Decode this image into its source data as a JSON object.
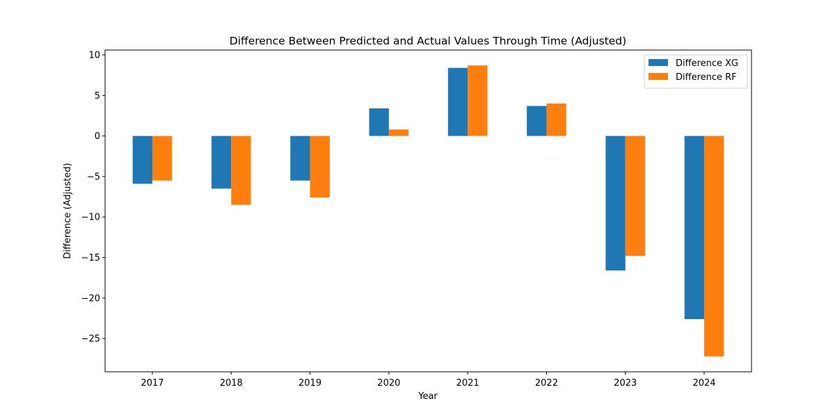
{
  "chart_data": {
    "type": "bar",
    "title": "Difference Between Predicted and Actual Values Through Time (Adjusted)",
    "xlabel": "Year",
    "ylabel": "Difference (Adjusted)",
    "categories": [
      "2017",
      "2018",
      "2019",
      "2020",
      "2021",
      "2022",
      "2023",
      "2024"
    ],
    "series": [
      {
        "name": "Difference XG",
        "color": "#1f77b4",
        "values": [
          -5.9,
          -6.5,
          -5.5,
          3.4,
          8.4,
          3.7,
          -16.6,
          -22.6
        ]
      },
      {
        "name": "Difference RF",
        "color": "#ff7f0e",
        "values": [
          -5.5,
          -8.5,
          -7.6,
          0.8,
          8.7,
          4.0,
          -14.8,
          -27.2
        ]
      }
    ],
    "ylim": [
      -29.1,
      10.6
    ],
    "yticks": [
      10,
      5,
      0,
      -5,
      -10,
      -15,
      -20,
      -25
    ],
    "ytick_labels": [
      "10",
      "5",
      "0",
      "−5",
      "−10",
      "−15",
      "−20",
      "−25"
    ],
    "grid": false,
    "legend_position": "top-right"
  }
}
